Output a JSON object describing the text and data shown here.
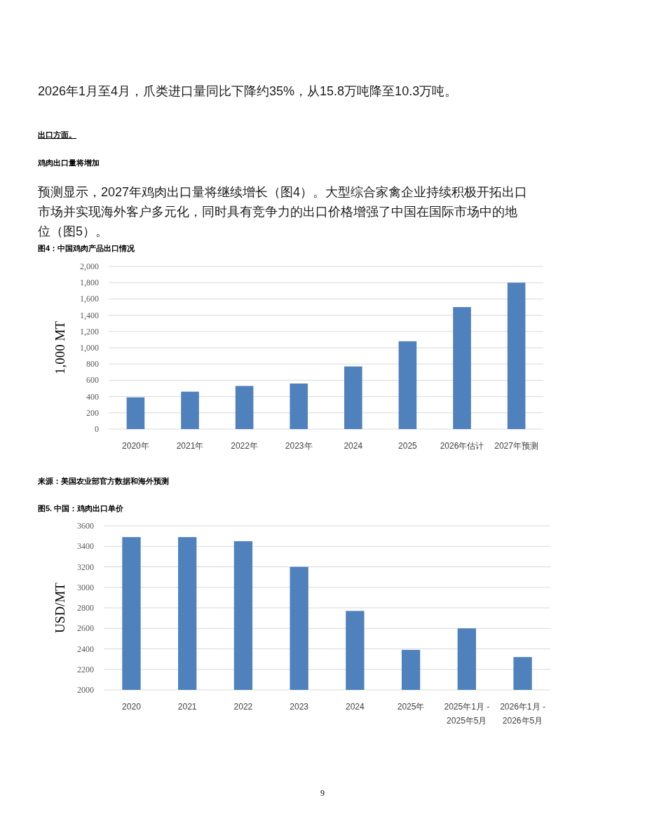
{
  "chart_data": [
    {
      "type": "bar",
      "title": "图4：中国鸡肉产品出口情况",
      "ylabel": "1,000 MT",
      "annotations": [
        "2026年1月至4月，爪类进口量同比下降约35%，从15.8万吨降至10.3万吨。",
        "出口方面。",
        "鸡肉出口量将增加",
        "预测显示，2027年鸡肉出口量将继续增长（图4）。大型综合家禽企业持续积极开拓出口市场并实现海外客户多元化，同时具有竞争力的出口价格增强了中国在国际市场中的地位（图5）。",
        "来源：美国农业部官方数据和海外预测"
      ],
      "categories": [
        "2020年",
        "2021年",
        "2022年",
        "2023年",
        "2024",
        "2025",
        "2026年估计",
        "2027年预测"
      ],
      "values": [
        390,
        460,
        530,
        560,
        770,
        1080,
        1500,
        1800
      ],
      "color": "#4f81bd",
      "ylim": [
        0,
        2000
      ],
      "yticks": [
        0,
        200,
        400,
        600,
        800,
        {
          "value": 1000,
          "label": "1,000"
        },
        {
          "value": 1200,
          "label": "1,200"
        },
        {
          "value": 1400,
          "label": "1,400"
        },
        {
          "value": 1600,
          "label": "1,600"
        },
        {
          "value": 1800,
          "label": "1,800"
        },
        {
          "value": 2000,
          "label": "2,000"
        }
      ],
      "grid": "y"
    },
    {
      "type": "bar",
      "title": "图5. 中国：鸡肉出口单价",
      "ylabel": "USD/MT",
      "annotations": [
        "9"
      ],
      "categories": [
        "2020",
        "2021",
        "2022",
        "2023",
        "2024",
        "2025年",
        "2025年1月 - 2025年5月",
        "2026年1月 - 2026年5月"
      ],
      "values": [
        3490,
        3490,
        3450,
        3200,
        2770,
        2390,
        2600,
        2320
      ],
      "color": "#4f81bd",
      "ylim": [
        2000,
        3600
      ],
      "yticks": [
        2000,
        2200,
        2400,
        2600,
        2800,
        3000,
        3200,
        3400,
        3600
      ],
      "grid": "y"
    }
  ]
}
